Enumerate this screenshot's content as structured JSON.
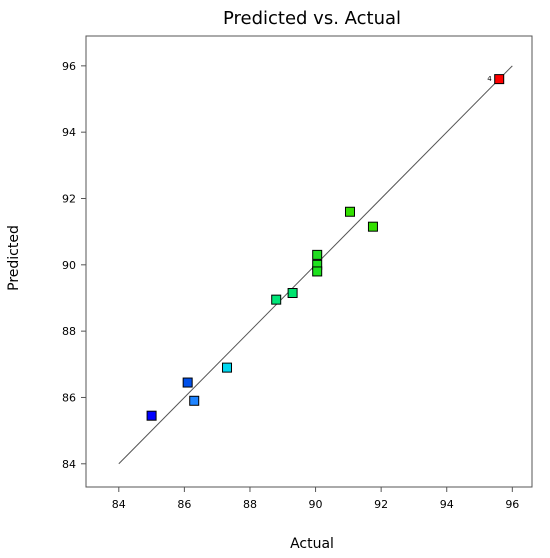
{
  "chart_data": {
    "type": "scatter",
    "title": "Predicted vs. Actual",
    "xlabel": "Actual",
    "ylabel": "Predicted",
    "xlim": [
      83,
      96.6
    ],
    "ylim": [
      83.3,
      96.9
    ],
    "x_ticks": [
      84,
      86,
      88,
      90,
      92,
      94,
      96
    ],
    "y_ticks": [
      84,
      86,
      88,
      90,
      92,
      94,
      96
    ],
    "x_tick_labels": [
      "84",
      "86",
      "88",
      "90",
      "92",
      "94",
      "96"
    ],
    "y_tick_labels": [
      "84",
      "86",
      "88",
      "90",
      "92",
      "94",
      "96"
    ],
    "reference_line": {
      "x": [
        84,
        96
      ],
      "y": [
        84,
        96
      ],
      "color": "#555555"
    },
    "grid": false,
    "legend": "none",
    "points": [
      {
        "x": 85.0,
        "y": 85.45,
        "color": "#0000ff"
      },
      {
        "x": 86.1,
        "y": 86.45,
        "color": "#0050ea"
      },
      {
        "x": 86.3,
        "y": 85.9,
        "color": "#1f84ff"
      },
      {
        "x": 87.3,
        "y": 86.9,
        "color": "#00d7ef"
      },
      {
        "x": 88.8,
        "y": 88.95,
        "color": "#00e678"
      },
      {
        "x": 89.3,
        "y": 89.15,
        "color": "#00e36e"
      },
      {
        "x": 90.05,
        "y": 90.3,
        "color": "#22dd22"
      },
      {
        "x": 90.05,
        "y": 90.0,
        "color": "#1ee21e"
      },
      {
        "x": 90.05,
        "y": 89.8,
        "color": "#1ee21e"
      },
      {
        "x": 91.05,
        "y": 91.6,
        "color": "#33e000"
      },
      {
        "x": 91.75,
        "y": 91.15,
        "color": "#33e000"
      },
      {
        "x": 95.6,
        "y": 95.6,
        "color": "#ff0000",
        "label": "4"
      }
    ]
  }
}
